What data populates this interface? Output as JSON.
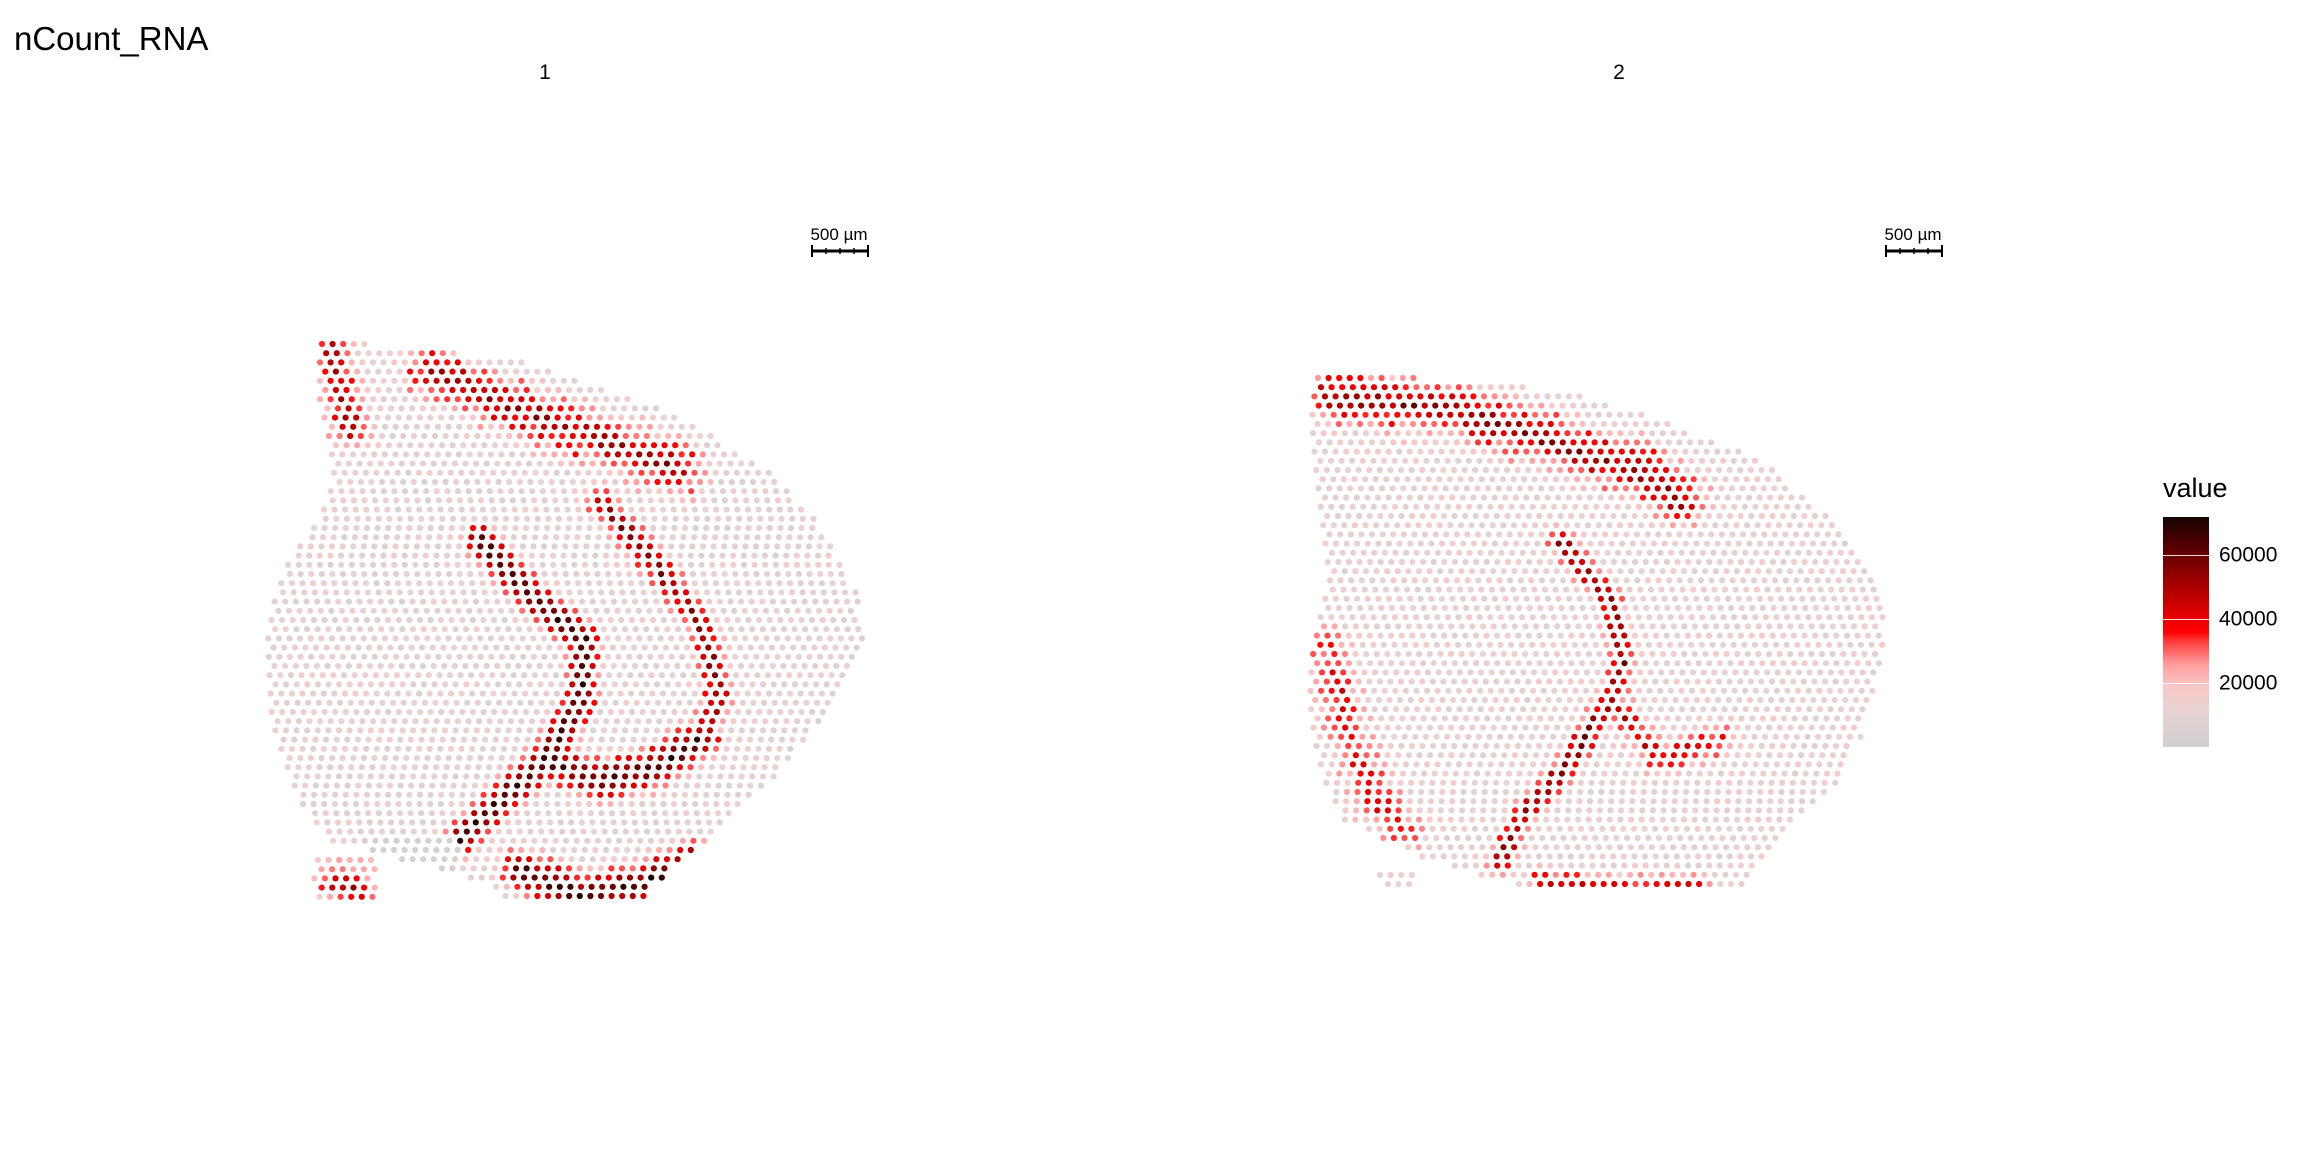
{
  "chart_data": {
    "type": "scatter",
    "title": "nCount_RNA",
    "panels": [
      {
        "label": "1",
        "scale_bar": "500 µm",
        "description_values": "Visium spatial spots colored by nCount_RNA; highest counts along the curved hippocampal band and the lower cortex"
      },
      {
        "label": "2",
        "scale_bar": "500 µm",
        "description_values": "Second section; lower overall counts with elevated values along the upper cortex and curved band"
      }
    ],
    "legend": {
      "title": "value",
      "ticks": [
        "20000",
        "40000",
        "60000"
      ],
      "tick_values": [
        20000,
        40000,
        60000
      ],
      "range": [
        0,
        72000
      ],
      "colors": [
        "#cfcfcf",
        "#ff0000",
        "#150500"
      ],
      "placement": "right"
    }
  }
}
